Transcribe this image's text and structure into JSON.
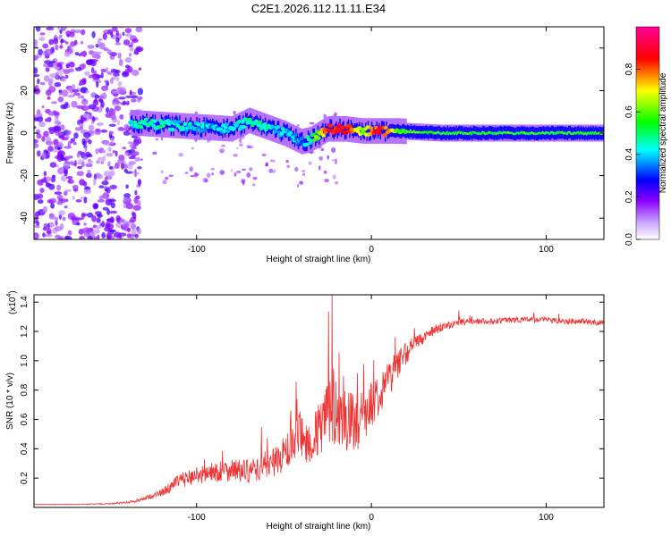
{
  "title": "C2E1.2026.112.11.11.E34",
  "chart_data": [
    {
      "type": "heatmap",
      "name": "spectrogram",
      "xlabel": "Height of straight line (km)",
      "ylabel": "Frequency (Hz)",
      "xlim": [
        -193,
        133
      ],
      "ylim": [
        -50,
        50
      ],
      "x_ticks": [
        -100,
        0,
        100
      ],
      "y_ticks": [
        -40,
        -20,
        0,
        20,
        40
      ],
      "colorbar": {
        "label": "Normalized spectral amplitude",
        "range": [
          0,
          1
        ],
        "ticks": [
          0.0,
          0.2,
          0.4,
          0.6,
          0.8
        ],
        "colors": [
          "#ffffff",
          "#8b00ff",
          "#0000ff",
          "#00ffff",
          "#00ff00",
          "#ffff00",
          "#ff0000",
          "#ff00aa"
        ]
      },
      "noise_region_km": [
        -193,
        -138
      ],
      "signal_track": {
        "x": [
          -138,
          -120,
          -100,
          -80,
          -70,
          -60,
          -50,
          -40,
          -35,
          -25,
          -15,
          -5,
          5,
          15,
          40,
          80,
          100,
          133
        ],
        "freq": [
          5,
          4,
          3,
          2,
          6,
          3,
          0,
          -4,
          -3,
          2,
          2,
          1,
          1,
          1,
          0,
          0,
          0,
          0
        ],
        "amplitude": [
          0.45,
          0.45,
          0.4,
          0.4,
          0.45,
          0.45,
          0.4,
          0.35,
          0.45,
          0.85,
          0.9,
          0.6,
          0.9,
          0.6,
          0.55,
          0.55,
          0.55,
          0.55
        ]
      }
    },
    {
      "type": "line",
      "name": "snr",
      "xlabel": "Height of straight line (km)",
      "ylabel": "SNR (10 * v/v)",
      "y_scale_label": "(x10",
      "y_scale_exp": "4",
      "xlim": [
        -193,
        133
      ],
      "ylim": [
        0,
        14500
      ],
      "x_ticks": [
        -100,
        0,
        100
      ],
      "y_ticks": [
        2000,
        4000,
        6000,
        8000,
        10000,
        12000,
        14000
      ],
      "y_tick_labels": [
        "0.2",
        "0.4",
        "0.6",
        "0.8",
        "1.0",
        "1.2",
        "1.4"
      ],
      "color": "#ee3333",
      "x": [
        -193,
        -170,
        -150,
        -135,
        -120,
        -110,
        -100,
        -90,
        -80,
        -70,
        -60,
        -50,
        -45,
        -40,
        -35,
        -30,
        -25,
        -20,
        -15,
        -10,
        -5,
        0,
        5,
        10,
        15,
        20,
        30,
        40,
        50,
        60,
        70,
        80,
        90,
        100,
        110,
        120,
        133
      ],
      "y": [
        200,
        200,
        250,
        400,
        1000,
        1800,
        2200,
        2400,
        2600,
        2400,
        2800,
        3600,
        4200,
        5000,
        4300,
        5200,
        6500,
        7200,
        6200,
        5600,
        6200,
        7000,
        8000,
        8800,
        9800,
        10600,
        11600,
        12300,
        12600,
        12700,
        12700,
        12800,
        12800,
        12800,
        12700,
        12700,
        12600
      ],
      "noise_amplitude": [
        20,
        20,
        40,
        80,
        250,
        500,
        600,
        700,
        800,
        800,
        900,
        1200,
        1500,
        1700,
        1500,
        2000,
        2500,
        3000,
        2500,
        2000,
        1800,
        1600,
        1500,
        1300,
        1000,
        800,
        400,
        300,
        250,
        200,
        200,
        200,
        200,
        200,
        200,
        200,
        200
      ]
    }
  ]
}
